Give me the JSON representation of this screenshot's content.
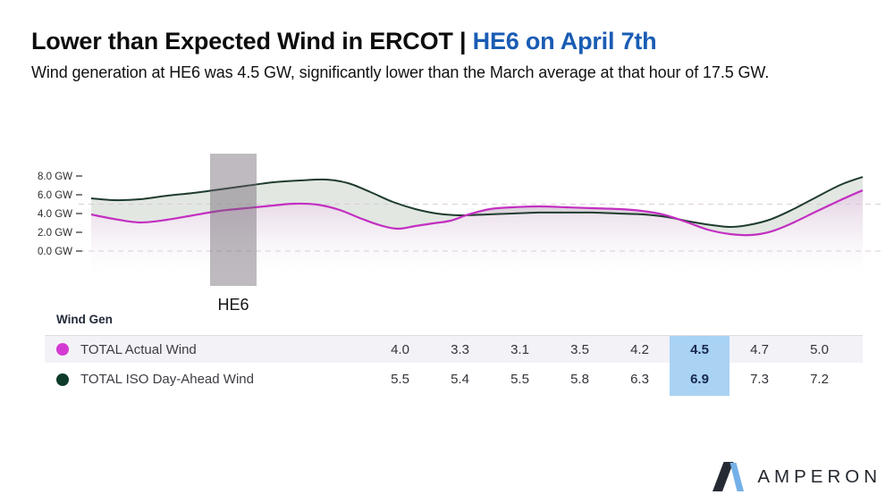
{
  "header": {
    "title_black": "Lower than Expected Wind in ERCOT | ",
    "title_blue": "HE6 on April 7th",
    "subtitle": "Wind generation at HE6 was 4.5 GW, significantly lower than the March average at that hour of 17.5 GW.",
    "accent_color": "#1a5cb4"
  },
  "chart_data": {
    "type": "area",
    "title": "",
    "ylabel": "GW",
    "ylim": [
      0,
      8
    ],
    "grid": "dashed horizontal reference lines",
    "y_ticks": [
      {
        "label": "8.0 GW",
        "gw": 8.0
      },
      {
        "label": "6.0 GW",
        "gw": 6.0
      },
      {
        "label": "4.0 GW",
        "gw": 4.0
      },
      {
        "label": "2.0 GW",
        "gw": 2.0
      },
      {
        "label": "0.0 GW",
        "gw": 0.0
      }
    ],
    "reference_lines_gw": [
      5.0,
      0.0
    ],
    "highlight_band_label": "HE6",
    "series": [
      {
        "name": "TOTAL Actual Wind",
        "color": "#c32fc1",
        "points": [
          [
            0.0,
            3.9
          ],
          [
            0.029,
            3.43
          ],
          [
            0.063,
            3.05
          ],
          [
            0.098,
            3.33
          ],
          [
            0.132,
            3.81
          ],
          [
            0.167,
            4.29
          ],
          [
            0.201,
            4.57
          ],
          [
            0.236,
            4.86
          ],
          [
            0.264,
            5.05
          ],
          [
            0.293,
            4.95
          ],
          [
            0.322,
            4.38
          ],
          [
            0.351,
            3.43
          ],
          [
            0.374,
            2.76
          ],
          [
            0.397,
            2.38
          ],
          [
            0.42,
            2.67
          ],
          [
            0.443,
            2.95
          ],
          [
            0.466,
            3.24
          ],
          [
            0.489,
            3.9
          ],
          [
            0.517,
            4.48
          ],
          [
            0.546,
            4.67
          ],
          [
            0.58,
            4.76
          ],
          [
            0.615,
            4.67
          ],
          [
            0.649,
            4.57
          ],
          [
            0.684,
            4.48
          ],
          [
            0.713,
            4.29
          ],
          [
            0.741,
            3.9
          ],
          [
            0.77,
            3.14
          ],
          [
            0.799,
            2.29
          ],
          [
            0.828,
            1.81
          ],
          [
            0.856,
            1.71
          ],
          [
            0.882,
            2.1
          ],
          [
            0.908,
            2.95
          ],
          [
            0.937,
            4.1
          ],
          [
            0.971,
            5.43
          ],
          [
            1.0,
            6.48
          ]
        ]
      },
      {
        "name": "TOTAL ISO Day-Ahead Wind",
        "color": "#1f3c2e",
        "points": [
          [
            0.0,
            5.62
          ],
          [
            0.029,
            5.43
          ],
          [
            0.063,
            5.52
          ],
          [
            0.098,
            5.9
          ],
          [
            0.132,
            6.19
          ],
          [
            0.167,
            6.57
          ],
          [
            0.201,
            6.95
          ],
          [
            0.236,
            7.33
          ],
          [
            0.27,
            7.52
          ],
          [
            0.305,
            7.62
          ],
          [
            0.333,
            7.24
          ],
          [
            0.362,
            6.29
          ],
          [
            0.391,
            5.24
          ],
          [
            0.42,
            4.48
          ],
          [
            0.448,
            4.0
          ],
          [
            0.477,
            3.81
          ],
          [
            0.511,
            3.9
          ],
          [
            0.546,
            4.0
          ],
          [
            0.58,
            4.1
          ],
          [
            0.615,
            4.1
          ],
          [
            0.649,
            4.1
          ],
          [
            0.684,
            4.0
          ],
          [
            0.718,
            3.9
          ],
          [
            0.747,
            3.62
          ],
          [
            0.776,
            3.14
          ],
          [
            0.805,
            2.76
          ],
          [
            0.828,
            2.57
          ],
          [
            0.851,
            2.76
          ],
          [
            0.879,
            3.33
          ],
          [
            0.908,
            4.38
          ],
          [
            0.937,
            5.62
          ],
          [
            0.971,
            7.05
          ],
          [
            1.0,
            7.9
          ]
        ]
      }
    ]
  },
  "table": {
    "header": "Wind Gen",
    "highlight_column_index": 5,
    "highlight_color": "#a9d2f3",
    "rows": [
      {
        "label": "TOTAL Actual Wind",
        "dot_color": "#d43ad2",
        "values": [
          "4.0",
          "3.3",
          "3.1",
          "3.5",
          "4.2",
          "4.5",
          "4.7",
          "5.0"
        ]
      },
      {
        "label": "TOTAL ISO Day-Ahead Wind",
        "dot_color": "#0e3b2a",
        "values": [
          "5.5",
          "5.4",
          "5.5",
          "5.8",
          "6.3",
          "6.9",
          "7.3",
          "7.2"
        ]
      }
    ]
  },
  "footer": {
    "brand": "AMPERON"
  }
}
